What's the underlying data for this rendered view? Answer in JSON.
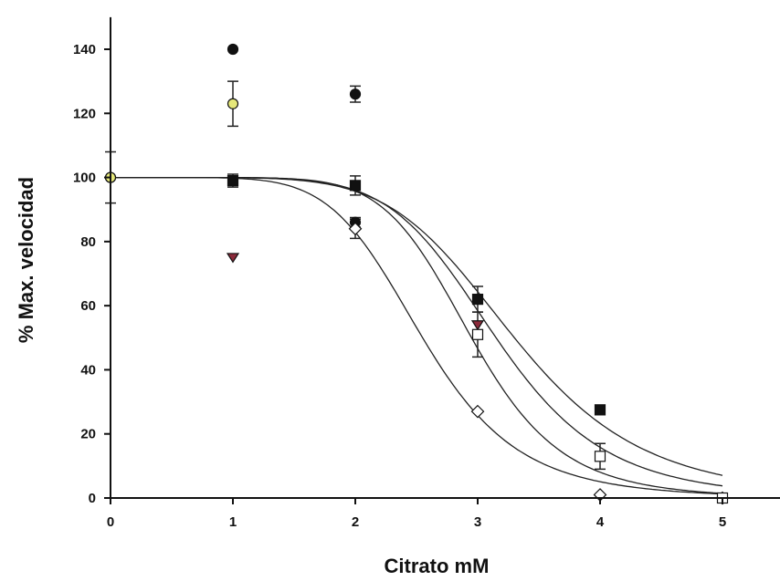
{
  "chart_data": {
    "type": "scatter",
    "title": "",
    "xlabel": "Citrato mM",
    "ylabel": "% Max. velocidad",
    "xlim": [
      0,
      5.5
    ],
    "ylim": [
      0,
      150
    ],
    "xticks": [
      0,
      1,
      2,
      3,
      4,
      5
    ],
    "yticks": [
      0,
      20,
      40,
      60,
      80,
      100,
      120,
      140
    ],
    "grid": false,
    "legend": "none",
    "series": [
      {
        "marker": "circle",
        "fill": "#111111",
        "points": [
          {
            "x": 0,
            "y": 100,
            "err": 8
          },
          {
            "x": 1,
            "y": 140
          },
          {
            "x": 2,
            "y": 126,
            "err": 2.5
          }
        ]
      },
      {
        "marker": "circle",
        "fill": "#e6e87a",
        "points": [
          {
            "x": 0,
            "y": 100
          },
          {
            "x": 1,
            "y": 123,
            "err": 7
          }
        ]
      },
      {
        "marker": "square",
        "fill": "#111111",
        "points": [
          {
            "x": 1,
            "y": 99,
            "err": 2
          },
          {
            "x": 2,
            "y": 97.5,
            "err": 3
          },
          {
            "x": 3,
            "y": 62,
            "err": 4
          },
          {
            "x": 4,
            "y": 27.5,
            "err": 1.5
          }
        ]
      },
      {
        "marker": "triangle-down",
        "fill": "#8b2a3a",
        "points": [
          {
            "x": 1,
            "y": 75
          },
          {
            "x": 3,
            "y": 54
          }
        ]
      },
      {
        "marker": "circle",
        "fill": "#111111",
        "points": [
          {
            "x": 2,
            "y": 86,
            "err": 1.5
          }
        ]
      },
      {
        "marker": "diamond",
        "fill": "#ffffff",
        "points": [
          {
            "x": 2,
            "y": 84,
            "err": 3
          },
          {
            "x": 3,
            "y": 27
          },
          {
            "x": 4,
            "y": 1
          },
          {
            "x": 5,
            "y": 0
          }
        ]
      },
      {
        "marker": "square",
        "fill": "#ffffff",
        "points": [
          {
            "x": 3,
            "y": 51,
            "err": 7
          },
          {
            "x": 4,
            "y": 13,
            "err": 4
          },
          {
            "x": 5,
            "y": 0
          }
        ]
      }
    ],
    "curves": [
      {
        "top": 100,
        "ic50": 2.55,
        "hill": 6.5
      },
      {
        "top": 100,
        "ic50": 2.95,
        "hill": 8.0
      },
      {
        "top": 100,
        "ic50": 3.15,
        "hill": 7.0
      },
      {
        "top": 100,
        "ic50": 3.3,
        "hill": 6.2
      }
    ]
  }
}
